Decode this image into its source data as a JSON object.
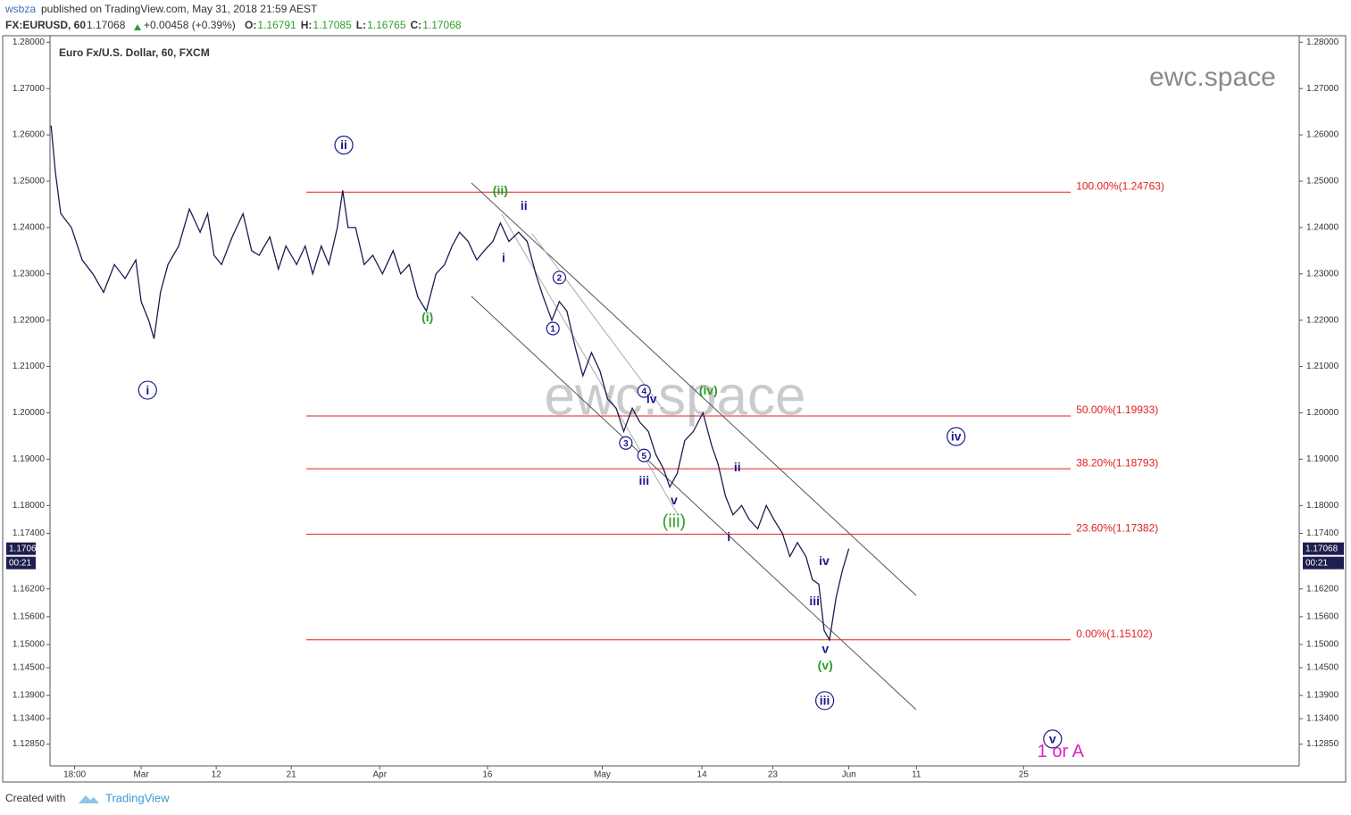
{
  "header": {
    "author": "wsbza",
    "published": "published on TradingView.com, May 31, 2018 21:59 AEST",
    "symbol": "FX:EURUSD, 60",
    "price": "1.17068",
    "change": "+0.00458 (+0.39%)",
    "ohlc": [
      {
        "label": "O:",
        "value": "1.16791"
      },
      {
        "label": "H:",
        "value": "1.17085"
      },
      {
        "label": "L:",
        "value": "1.16765"
      },
      {
        "label": "C:",
        "value": "1.17068"
      }
    ]
  },
  "footer": {
    "created": "Created with",
    "brand": "TradingView"
  },
  "chart_data": {
    "type": "line",
    "title": "Euro Fx/U.S. Dollar, 60, FXCM",
    "watermark": "ewc.space",
    "color": "#1c1c4e",
    "x": [
      -8.4,
      -8,
      -7.5,
      -6.5,
      -5.5,
      -4.5,
      -3.5,
      -2.5,
      -1.5,
      -0.5,
      0,
      0.7,
      1.2,
      1.8,
      2.5,
      3.5,
      4.5,
      5.5,
      6.2,
      6.8,
      7.5,
      8.5,
      9.5,
      10.3,
      11,
      12,
      12.8,
      13.5,
      14.5,
      15.3,
      16,
      16.8,
      17.5,
      18.3,
      18.8,
      19.3,
      20,
      20.8,
      21.6,
      22.5,
      23.5,
      24.2,
      25,
      25.8,
      26.6,
      27.5,
      28.3,
      29,
      29.7,
      30.5,
      31.3,
      32,
      32.8,
      33.5,
      34.3,
      35.2,
      36,
      36.8,
      37.5,
      38.3,
      39,
      39.7,
      40.5,
      41.2,
      42,
      42.8,
      43.5,
      44.3,
      45,
      45.8,
      46.5,
      47.3,
      48,
      48.7,
      49.3,
      50,
      50.7,
      51.5,
      52.4,
      53.2,
      53.8,
      54.5,
      55.2,
      56,
      56.7,
      57.5,
      58.3,
      59,
      59.8,
      60.5,
      61.2,
      62,
      62.6,
      63.2,
      63.7,
      64.2,
      64.8,
      65.4,
      66
    ],
    "values": [
      1.262,
      1.252,
      1.243,
      1.24,
      1.233,
      1.23,
      1.226,
      1.232,
      1.229,
      1.233,
      1.224,
      1.22,
      1.216,
      1.226,
      1.232,
      1.236,
      1.244,
      1.239,
      1.243,
      1.234,
      1.232,
      1.238,
      1.243,
      1.235,
      1.234,
      1.238,
      1.231,
      1.236,
      1.232,
      1.236,
      1.23,
      1.236,
      1.232,
      1.24,
      1.248,
      1.24,
      1.24,
      1.232,
      1.234,
      1.23,
      1.235,
      1.23,
      1.232,
      1.225,
      1.222,
      1.23,
      1.232,
      1.236,
      1.239,
      1.237,
      1.233,
      1.235,
      1.237,
      1.241,
      1.237,
      1.239,
      1.237,
      1.23,
      1.225,
      1.22,
      1.224,
      1.222,
      1.214,
      1.208,
      1.213,
      1.209,
      1.203,
      1.201,
      1.196,
      1.201,
      1.198,
      1.196,
      1.191,
      1.188,
      1.184,
      1.187,
      1.194,
      1.196,
      1.2,
      1.193,
      1.189,
      1.182,
      1.178,
      1.18,
      1.177,
      1.175,
      1.18,
      1.177,
      1.174,
      1.169,
      1.172,
      1.169,
      1.164,
      1.163,
      1.153,
      1.151,
      1.16,
      1.166,
      1.17068
    ],
    "xlim": [
      -8.5,
      108
    ],
    "ylim": [
      1.1238,
      1.2814
    ],
    "xticks": [
      {
        "value": -6.2,
        "label": "18:00"
      },
      {
        "value": 0,
        "label": "Mar"
      },
      {
        "value": 7,
        "label": "12"
      },
      {
        "value": 14,
        "label": "21"
      },
      {
        "value": 22.25,
        "label": "Apr"
      },
      {
        "value": 32.3,
        "label": "16"
      },
      {
        "value": 43,
        "label": "May"
      },
      {
        "value": 52.3,
        "label": "14"
      },
      {
        "value": 58.9,
        "label": "23"
      },
      {
        "value": 66,
        "label": "Jun"
      },
      {
        "value": 72.3,
        "label": "11"
      },
      {
        "value": 82.3,
        "label": "25"
      }
    ],
    "yticks": [
      {
        "value": 1.28,
        "label": "1.28000"
      },
      {
        "value": 1.27,
        "label": "1.27000"
      },
      {
        "value": 1.26,
        "label": "1.26000"
      },
      {
        "value": 1.25,
        "label": "1.25000"
      },
      {
        "value": 1.24,
        "label": "1.24000"
      },
      {
        "value": 1.23,
        "label": "1.23000"
      },
      {
        "value": 1.22,
        "label": "1.22000"
      },
      {
        "value": 1.21,
        "label": "1.21000"
      },
      {
        "value": 1.2,
        "label": "1.20000"
      },
      {
        "value": 1.19,
        "label": "1.19000"
      },
      {
        "value": 1.18,
        "label": "1.18000"
      },
      {
        "value": 1.174,
        "label": "1.17400"
      },
      {
        "value": 1.162,
        "label": "1.16200"
      },
      {
        "value": 1.156,
        "label": "1.15600"
      },
      {
        "value": 1.15,
        "label": "1.15000"
      },
      {
        "value": 1.145,
        "label": "1.14500"
      },
      {
        "value": 1.139,
        "label": "1.13900"
      },
      {
        "value": 1.134,
        "label": "1.13400"
      },
      {
        "value": 1.1285,
        "label": "1.12850"
      }
    ],
    "last_price": 1.17068,
    "countdown": "00:21",
    "fib_color": "#e02020",
    "fib_x": [
      15.4,
      86.7
    ],
    "fib_levels": [
      {
        "value": 1.24763,
        "label": "100.00%(1.24763)"
      },
      {
        "value": 1.19933,
        "label": "50.00%(1.19933)"
      },
      {
        "value": 1.18793,
        "label": "38.20%(1.18793)"
      },
      {
        "value": 1.17382,
        "label": "23.60%(1.17382)"
      },
      {
        "value": 1.15102,
        "label": "0.00%(1.15102)"
      }
    ],
    "annotations": [
      {
        "text": "ii",
        "x": 18.9,
        "y": 1.2578,
        "color": "#1a1a8c",
        "circled": true
      },
      {
        "text": "i",
        "x": 0.6,
        "y": 1.2049,
        "color": "#1a1a8c",
        "circled": true
      },
      {
        "text": "(i)",
        "x": 26.7,
        "y": 1.2207,
        "color": "#2e9e2e",
        "circled": false
      },
      {
        "text": "(ii)",
        "x": 33.5,
        "y": 1.248,
        "color": "#2e9e2e",
        "circled": false
      },
      {
        "text": "ii",
        "x": 35.7,
        "y": 1.2447,
        "color": "#1a1a8c",
        "circled": false
      },
      {
        "text": "i",
        "x": 33.8,
        "y": 1.2335,
        "color": "#1a1a8c",
        "circled": false
      },
      {
        "text": "2",
        "x": 39,
        "y": 1.2292,
        "color": "#1a1a8c",
        "circled": true
      },
      {
        "text": "1",
        "x": 38.4,
        "y": 1.2182,
        "color": "#1a1a8c",
        "circled": true
      },
      {
        "text": "4",
        "x": 46.9,
        "y": 1.2047,
        "color": "#1a1a8c",
        "circled": true
      },
      {
        "text": "iv",
        "x": 47.6,
        "y": 1.203,
        "color": "#1a1a8c",
        "circled": false
      },
      {
        "text": "3",
        "x": 45.2,
        "y": 1.1935,
        "color": "#1a1a8c",
        "circled": true
      },
      {
        "text": "5",
        "x": 46.9,
        "y": 1.1908,
        "color": "#1a1a8c",
        "circled": true
      },
      {
        "text": "iii",
        "x": 46.9,
        "y": 1.1854,
        "color": "#1a1a8c",
        "circled": false
      },
      {
        "text": "v",
        "x": 49.7,
        "y": 1.1812,
        "color": "#1a1a8c",
        "circled": false
      },
      {
        "text": "(iii)",
        "x": 49.7,
        "y": 1.1765,
        "color": "#2e9e2e",
        "circled": false
      },
      {
        "text": "(iv)",
        "x": 52.9,
        "y": 1.2049,
        "color": "#2e9e2e",
        "circled": false
      },
      {
        "text": "ii",
        "x": 55.6,
        "y": 1.1883,
        "color": "#1a1a8c",
        "circled": false
      },
      {
        "text": "i",
        "x": 54.8,
        "y": 1.1733,
        "color": "#1a1a8c",
        "circled": false
      },
      {
        "text": "iv",
        "x": 63.7,
        "y": 1.1681,
        "color": "#1a1a8c",
        "circled": false
      },
      {
        "text": "iii",
        "x": 62.8,
        "y": 1.1594,
        "color": "#1a1a8c",
        "circled": false
      },
      {
        "text": "v",
        "x": 63.8,
        "y": 1.1491,
        "color": "#1a1a8c",
        "circled": false
      },
      {
        "text": "(v)",
        "x": 63.8,
        "y": 1.1455,
        "color": "#2e9e2e",
        "circled": false
      },
      {
        "text": "iii",
        "x": 63.75,
        "y": 1.1379,
        "color": "#1a1a8c",
        "circled": true
      },
      {
        "text": "iv",
        "x": 76,
        "y": 1.1949,
        "color": "#1a1a8c",
        "circled": true
      },
      {
        "text": "v",
        "x": 85,
        "y": 1.1296,
        "color": "#1a1a8c",
        "circled": true
      },
      {
        "text": "1 or A",
        "x": 85.75,
        "y": 1.1269,
        "color": "#e020c0",
        "circled": false
      }
    ]
  }
}
